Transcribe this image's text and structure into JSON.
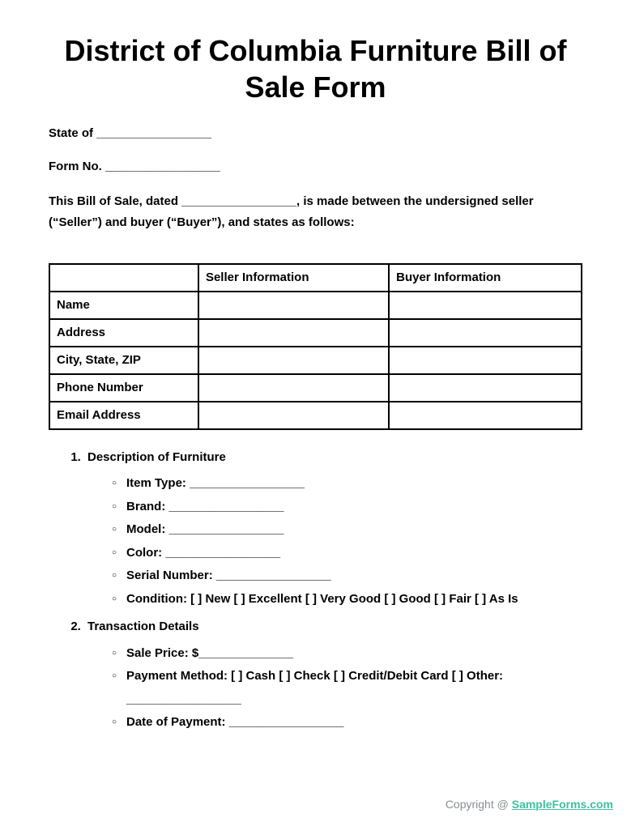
{
  "title": "District of Columbia Furniture Bill of Sale Form",
  "meta": {
    "state_label": "State of _________________",
    "form_no_label": "Form No. _________________"
  },
  "intro": "This Bill of Sale, dated _________________, is made between the undersigned seller (“Seller”) and buyer (“Buyer”), and states as follows:",
  "table": {
    "headers": [
      "",
      "Seller Information",
      "Buyer Information"
    ],
    "rows": [
      "Name",
      "Address",
      "City, State, ZIP",
      "Phone Number",
      "Email Address"
    ]
  },
  "sections": {
    "s1": {
      "title": "Description of Furniture",
      "items": [
        "Item Type: _________________",
        "Brand: _________________",
        "Model: _________________",
        "Color: _________________",
        "Serial Number: _________________",
        "Condition: [ ] New [ ] Excellent [ ] Very Good [ ] Good [ ] Fair [ ] As Is"
      ]
    },
    "s2": {
      "title": "Transaction Details",
      "items": [
        "Sale Price: $______________",
        "Payment Method: [ ] Cash [ ] Check [ ] Credit/Debit Card [ ] Other: _________________",
        "Date of Payment: _________________"
      ]
    }
  },
  "footer": {
    "prefix": "Copyright @ ",
    "link_text": "SampleForms.com"
  }
}
